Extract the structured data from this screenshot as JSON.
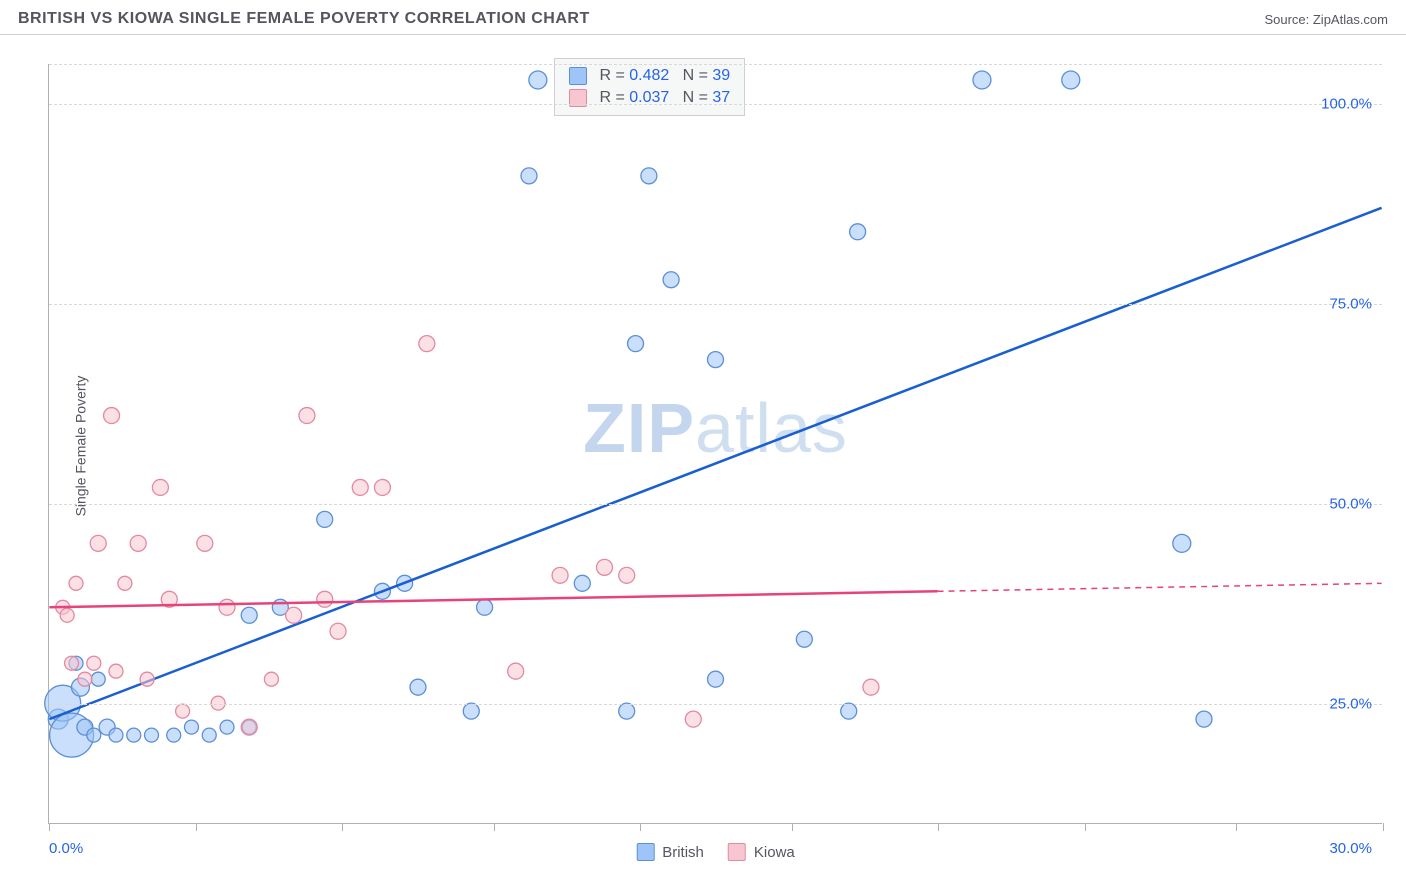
{
  "header": {
    "title": "BRITISH VS KIOWA SINGLE FEMALE POVERTY CORRELATION CHART",
    "source_prefix": "Source: ",
    "source_name": "ZipAtlas.com"
  },
  "watermark": {
    "part1": "ZIP",
    "part2": "atlas"
  },
  "ylabel": "Single Female Poverty",
  "chart": {
    "type": "scatter",
    "xlim": [
      0,
      30
    ],
    "ylim": [
      10,
      105
    ],
    "xticks": [
      0,
      3.3,
      6.6,
      10,
      13.3,
      16.7,
      20,
      23.3,
      26.7,
      30
    ],
    "xtick_labels": {
      "0": "0.0%",
      "30": "30.0%"
    },
    "yticks": [
      25,
      50,
      75,
      100
    ],
    "ytick_labels": [
      "25.0%",
      "50.0%",
      "75.0%",
      "100.0%"
    ],
    "grid_color": "#d8d8d8",
    "axis_color": "#b0b0b0",
    "background": "#ffffff",
    "series": [
      {
        "name": "British",
        "color_fill": "#9fc5f8",
        "color_stroke": "#5b8fd6",
        "line_color": "#1a5fd0",
        "R": "0.482",
        "N": "39",
        "trend": {
          "x1": 0,
          "y1": 23,
          "x2": 30,
          "y2": 87,
          "solid_until_x": 30
        },
        "points": [
          {
            "x": 0.2,
            "y": 23,
            "r": 10
          },
          {
            "x": 0.3,
            "y": 25,
            "r": 18
          },
          {
            "x": 0.5,
            "y": 21,
            "r": 22
          },
          {
            "x": 0.6,
            "y": 30,
            "r": 7
          },
          {
            "x": 0.7,
            "y": 27,
            "r": 9
          },
          {
            "x": 0.8,
            "y": 22,
            "r": 8
          },
          {
            "x": 1.0,
            "y": 21,
            "r": 7
          },
          {
            "x": 1.1,
            "y": 28,
            "r": 7
          },
          {
            "x": 1.3,
            "y": 22,
            "r": 8
          },
          {
            "x": 1.5,
            "y": 21,
            "r": 7
          },
          {
            "x": 1.9,
            "y": 21,
            "r": 7
          },
          {
            "x": 2.3,
            "y": 21,
            "r": 7
          },
          {
            "x": 2.8,
            "y": 21,
            "r": 7
          },
          {
            "x": 3.2,
            "y": 22,
            "r": 7
          },
          {
            "x": 3.6,
            "y": 21,
            "r": 7
          },
          {
            "x": 4.0,
            "y": 22,
            "r": 7
          },
          {
            "x": 4.5,
            "y": 22,
            "r": 7
          },
          {
            "x": 4.5,
            "y": 36,
            "r": 8
          },
          {
            "x": 5.2,
            "y": 37,
            "r": 8
          },
          {
            "x": 6.2,
            "y": 48,
            "r": 8
          },
          {
            "x": 7.5,
            "y": 39,
            "r": 8
          },
          {
            "x": 8.0,
            "y": 40,
            "r": 8
          },
          {
            "x": 8.3,
            "y": 27,
            "r": 8
          },
          {
            "x": 9.5,
            "y": 24,
            "r": 8
          },
          {
            "x": 9.8,
            "y": 37,
            "r": 8
          },
          {
            "x": 11.0,
            "y": 103,
            "r": 9
          },
          {
            "x": 10.8,
            "y": 91,
            "r": 8
          },
          {
            "x": 12.0,
            "y": 40,
            "r": 8
          },
          {
            "x": 12.2,
            "y": 103,
            "r": 9
          },
          {
            "x": 13.0,
            "y": 24,
            "r": 8
          },
          {
            "x": 13.2,
            "y": 70,
            "r": 8
          },
          {
            "x": 13.5,
            "y": 91,
            "r": 8
          },
          {
            "x": 14.0,
            "y": 78,
            "r": 8
          },
          {
            "x": 15.0,
            "y": 68,
            "r": 8
          },
          {
            "x": 15.0,
            "y": 28,
            "r": 8
          },
          {
            "x": 17.0,
            "y": 33,
            "r": 8
          },
          {
            "x": 18.0,
            "y": 24,
            "r": 8
          },
          {
            "x": 18.2,
            "y": 84,
            "r": 8
          },
          {
            "x": 21.0,
            "y": 103,
            "r": 9
          },
          {
            "x": 23.0,
            "y": 103,
            "r": 9
          },
          {
            "x": 25.5,
            "y": 45,
            "r": 9
          },
          {
            "x": 26.0,
            "y": 23,
            "r": 8
          }
        ]
      },
      {
        "name": "Kiowa",
        "color_fill": "#f7c6d0",
        "color_stroke": "#e389a1",
        "line_color": "#e8427a",
        "R": "0.037",
        "N": "37",
        "trend": {
          "x1": 0,
          "y1": 37,
          "x2": 30,
          "y2": 40,
          "solid_until_x": 20
        },
        "points": [
          {
            "x": 0.3,
            "y": 37,
            "r": 7
          },
          {
            "x": 0.4,
            "y": 36,
            "r": 7
          },
          {
            "x": 0.5,
            "y": 30,
            "r": 7
          },
          {
            "x": 0.6,
            "y": 40,
            "r": 7
          },
          {
            "x": 0.8,
            "y": 28,
            "r": 7
          },
          {
            "x": 1.0,
            "y": 30,
            "r": 7
          },
          {
            "x": 1.1,
            "y": 45,
            "r": 8
          },
          {
            "x": 1.4,
            "y": 61,
            "r": 8
          },
          {
            "x": 1.5,
            "y": 29,
            "r": 7
          },
          {
            "x": 1.7,
            "y": 40,
            "r": 7
          },
          {
            "x": 2.0,
            "y": 45,
            "r": 8
          },
          {
            "x": 2.2,
            "y": 28,
            "r": 7
          },
          {
            "x": 2.5,
            "y": 52,
            "r": 8
          },
          {
            "x": 2.7,
            "y": 38,
            "r": 8
          },
          {
            "x": 3.0,
            "y": 24,
            "r": 7
          },
          {
            "x": 3.5,
            "y": 45,
            "r": 8
          },
          {
            "x": 3.8,
            "y": 25,
            "r": 7
          },
          {
            "x": 4.0,
            "y": 37,
            "r": 8
          },
          {
            "x": 4.5,
            "y": 22,
            "r": 8
          },
          {
            "x": 5.0,
            "y": 28,
            "r": 7
          },
          {
            "x": 5.5,
            "y": 36,
            "r": 8
          },
          {
            "x": 5.8,
            "y": 61,
            "r": 8
          },
          {
            "x": 6.2,
            "y": 38,
            "r": 8
          },
          {
            "x": 6.5,
            "y": 34,
            "r": 8
          },
          {
            "x": 7.0,
            "y": 52,
            "r": 8
          },
          {
            "x": 7.5,
            "y": 52,
            "r": 8
          },
          {
            "x": 8.5,
            "y": 70,
            "r": 8
          },
          {
            "x": 10.5,
            "y": 29,
            "r": 8
          },
          {
            "x": 11.5,
            "y": 41,
            "r": 8
          },
          {
            "x": 12.5,
            "y": 42,
            "r": 8
          },
          {
            "x": 13.0,
            "y": 41,
            "r": 8
          },
          {
            "x": 14.5,
            "y": 23,
            "r": 8
          },
          {
            "x": 18.5,
            "y": 27,
            "r": 8
          }
        ]
      }
    ]
  },
  "bottom_legend": [
    {
      "label": "British",
      "fill": "#9fc5f8",
      "stroke": "#5b8fd6"
    },
    {
      "label": "Kiowa",
      "fill": "#f7c6d0",
      "stroke": "#e389a1"
    }
  ],
  "stats_legend": {
    "R_label": "R =",
    "N_label": "N ="
  }
}
